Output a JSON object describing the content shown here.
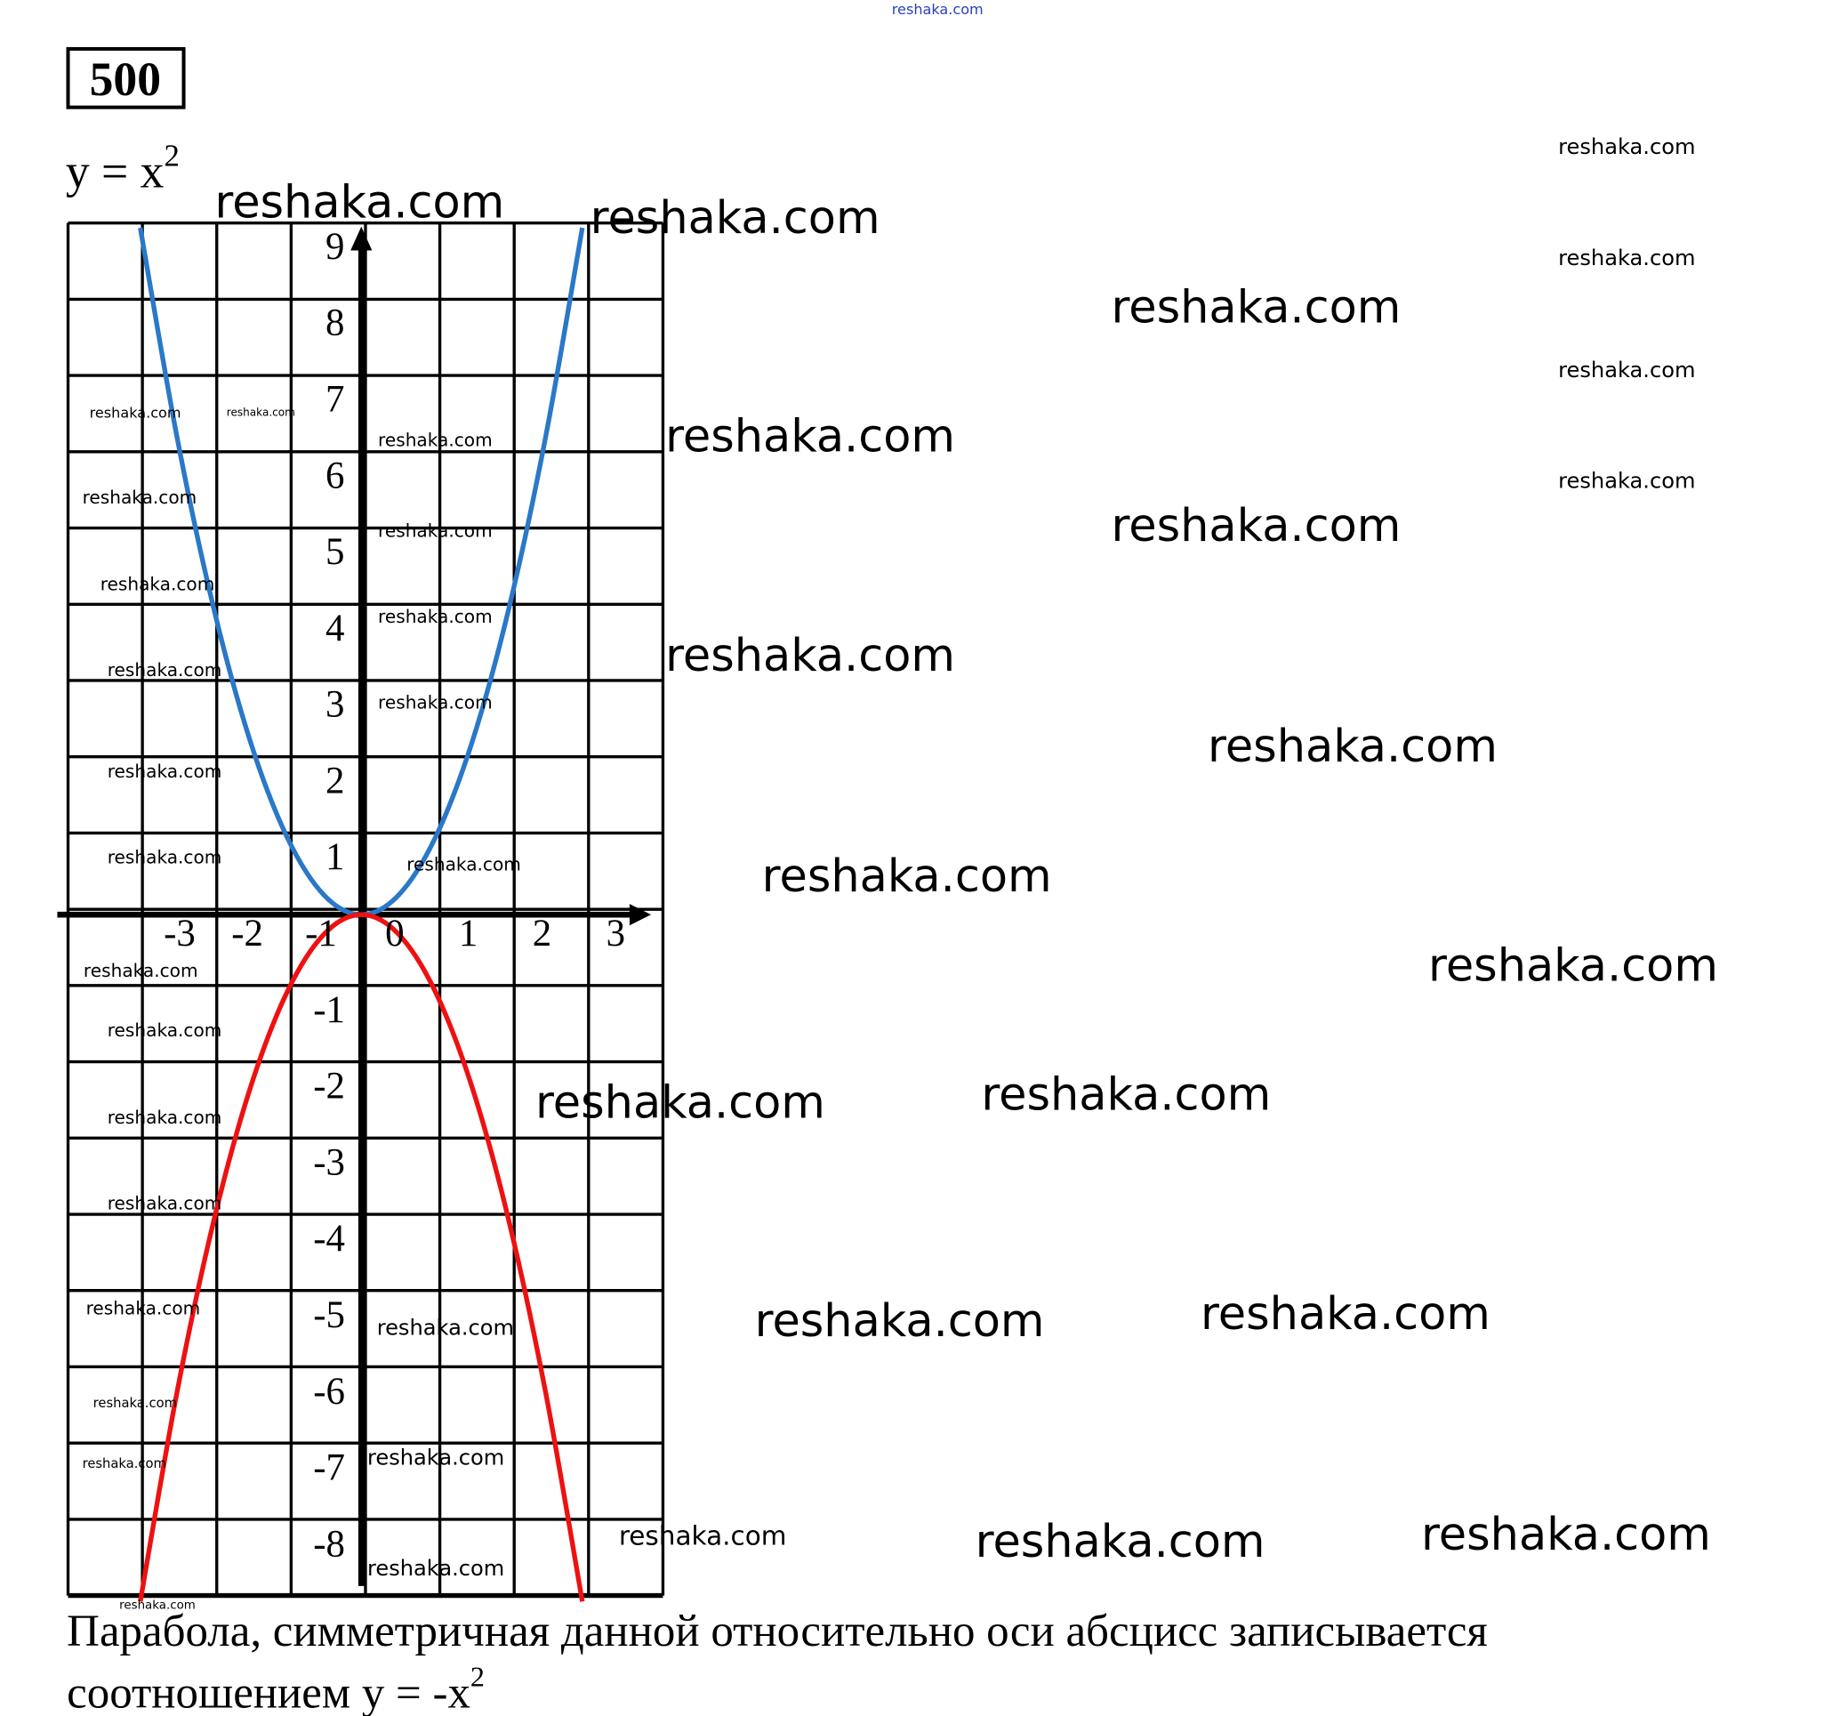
{
  "problem_number": "500",
  "formula_label": "y = x",
  "formula_exponent": "2",
  "watermark": "reshaka.com",
  "watermark_color": "#2a3fbf",
  "conclusion": {
    "line1": "Парабола, симметричная данной относительно оси абсцисс записывается",
    "line2": "соотношением y = -x",
    "line2_exponent": "2"
  },
  "chart_data": {
    "type": "line",
    "grid": true,
    "xlim": [
      -4,
      4
    ],
    "ylim": [
      -9,
      9
    ],
    "x_ticks": [
      "-3",
      "-2",
      "-1",
      "0",
      "1",
      "2",
      "3"
    ],
    "x_tick_values": [
      -3,
      -2,
      -1,
      0,
      1,
      2,
      3
    ],
    "y_ticks": [
      "9",
      "8",
      "7",
      "6",
      "5",
      "4",
      "3",
      "2",
      "1",
      "-1",
      "-2",
      "-3",
      "-4",
      "-5",
      "-6",
      "-7",
      "-8"
    ],
    "y_tick_values": [
      9,
      8,
      7,
      6,
      5,
      4,
      3,
      2,
      1,
      -1,
      -2,
      -3,
      -4,
      -5,
      -6,
      -7,
      -8
    ],
    "x": [
      -3,
      -2.5,
      -2,
      -1.5,
      -1,
      -0.5,
      0,
      0.5,
      1,
      1.5,
      2,
      2.5,
      3
    ],
    "series": [
      {
        "color": "#2a78c8",
        "values": [
          9,
          6.25,
          4,
          2.25,
          1,
          0.25,
          0,
          0.25,
          1,
          2.25,
          4,
          6.25,
          9
        ]
      },
      {
        "color": "#ee1111",
        "values": [
          -9,
          -6.25,
          -4,
          -2.25,
          -1,
          -0.25,
          0,
          -0.25,
          -1,
          -2.25,
          -4,
          -6.25,
          -9
        ]
      }
    ]
  }
}
